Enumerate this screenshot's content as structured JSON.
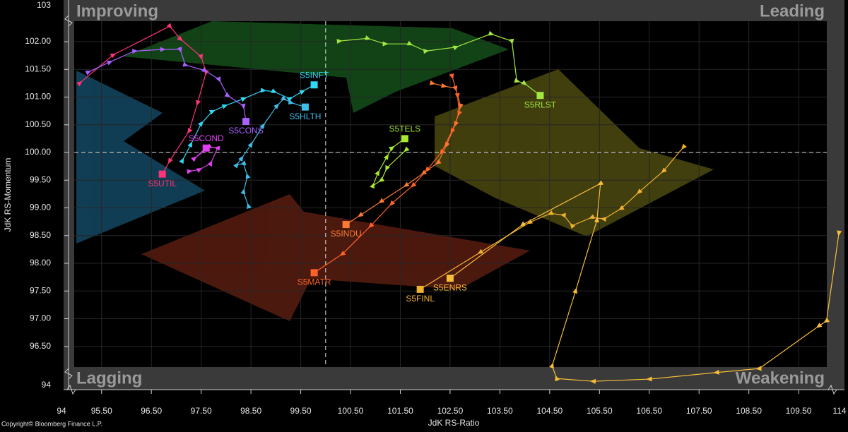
{
  "chart_data": {
    "type": "line",
    "x_label": "JdK RS-Ratio",
    "y_label": "JdK RS-Momentum",
    "quadrants": {
      "top_left": "Improving",
      "top_right": "Leading",
      "bottom_left": "Lagging",
      "bottom_right": "Weakening"
    },
    "copyright": "Copyright© Bloomberg Finance L.P.",
    "xlim": [
      94.95,
      110.35
    ],
    "ylim": [
      95.745,
      102.37
    ],
    "axis_breaks": {
      "x": [
        94,
        114
      ],
      "y": [
        94,
        103
      ]
    },
    "reference_lines": {
      "x": 100,
      "y": 100
    },
    "grid": true,
    "xticks": [
      {
        "value": 95.5,
        "label": "95.50"
      },
      {
        "value": 96.5,
        "label": "96.50"
      },
      {
        "value": 97.5,
        "label": "97.50"
      },
      {
        "value": 98.5,
        "label": "98.50"
      },
      {
        "value": 99.5,
        "label": "99.50"
      },
      {
        "value": 100.5,
        "label": "100.50"
      },
      {
        "value": 101.5,
        "label": "101.50"
      },
      {
        "value": 102.5,
        "label": "102.50"
      },
      {
        "value": 103.5,
        "label": "103.50"
      },
      {
        "value": 104.5,
        "label": "104.50"
      },
      {
        "value": 105.5,
        "label": "105.50"
      },
      {
        "value": 106.5,
        "label": "106.50"
      },
      {
        "value": 107.5,
        "label": "107.50"
      },
      {
        "value": 108.5,
        "label": "108.50"
      },
      {
        "value": 109.5,
        "label": "109.50"
      }
    ],
    "yticks": [
      {
        "value": 96.5,
        "label": "96.50"
      },
      {
        "value": 97,
        "label": "97.00"
      },
      {
        "value": 97.5,
        "label": "97.50"
      },
      {
        "value": 98,
        "label": "98.00"
      },
      {
        "value": 98.5,
        "label": "98.50"
      },
      {
        "value": 99,
        "label": "99.00"
      },
      {
        "value": 99.5,
        "label": "99.50"
      },
      {
        "value": 100,
        "label": "100.00"
      },
      {
        "value": 100.5,
        "label": "100.50"
      },
      {
        "value": 101,
        "label": "101.00"
      },
      {
        "value": 101.5,
        "label": "101.50"
      },
      {
        "value": 102,
        "label": "102.00"
      }
    ],
    "series": [
      {
        "name": "S5UTIL",
        "color": "#ff3377",
        "x": [
          95.06,
          95.73,
          96.87,
          97.08,
          97.5,
          97.6,
          97.43,
          97.26,
          96.87,
          96.72
        ],
        "values": [
          101.25,
          101.76,
          102.28,
          102.05,
          101.73,
          101.45,
          100.9,
          100.39,
          99.85,
          99.61
        ]
      },
      {
        "name": "S5CONS",
        "color": "#a860ff",
        "x": [
          95.23,
          95.66,
          96.16,
          96.72,
          97.08,
          97.18,
          97.57,
          97.86,
          98.03,
          98.35,
          98.4
        ],
        "values": [
          101.45,
          101.63,
          101.83,
          101.86,
          101.86,
          101.58,
          101.48,
          101.32,
          101.03,
          100.84,
          100.56
        ]
      },
      {
        "name": "S5INFT",
        "color": "#30d8f8",
        "x": [
          97.12,
          97.29,
          97.5,
          97.72,
          97.97,
          98.35,
          98.74,
          98.96,
          99.28,
          99.53,
          99.77
        ],
        "values": [
          99.85,
          100.14,
          100.52,
          100.74,
          100.84,
          100.97,
          101.12,
          101.1,
          100.97,
          101.1,
          101.22
        ]
      },
      {
        "name": "S5HLTH",
        "color": "#40bce8",
        "x": [
          98.45,
          98.35,
          98.43,
          98.35,
          98.21,
          98.31,
          98.5,
          98.74,
          99.02,
          99.16,
          99.3,
          99.59
        ],
        "values": [
          99.03,
          99.29,
          99.57,
          99.8,
          99.77,
          99.89,
          100.14,
          100.48,
          100.84,
          100.97,
          100.9,
          100.82
        ]
      },
      {
        "name": "S5COND",
        "color": "#e040f0",
        "x": [
          97.26,
          97.46,
          97.69,
          97.83,
          97.66,
          97.36,
          97.6
        ],
        "values": [
          99.66,
          99.69,
          99.8,
          100.08,
          100.1,
          99.89,
          100.08
        ]
      },
      {
        "name": "S5TELS",
        "color": "#a8e830",
        "x": [
          101.62,
          101.23,
          101.12,
          100.95,
          101.05,
          101.23,
          101.33,
          101.59
        ],
        "values": [
          100.05,
          99.72,
          99.5,
          99.4,
          99.63,
          99.92,
          100.08,
          100.25
        ]
      },
      {
        "name": "S5INDU",
        "color": "#ff7a30",
        "x": [
          102.14,
          102.37,
          102.61,
          102.71,
          102.61,
          102.43,
          102.26,
          101.97,
          101.62,
          101.12,
          100.7,
          100.41
        ],
        "values": [
          101.25,
          101.2,
          101.16,
          100.84,
          100.52,
          100.14,
          99.82,
          99.63,
          99.41,
          99.12,
          98.87,
          98.7
        ]
      },
      {
        "name": "S5MATR",
        "color": "#ff6228",
        "x": [
          102.54,
          102.65,
          102.68,
          102.54,
          102.33,
          102.04,
          101.76,
          101.33,
          100.91,
          100.34,
          99.77
        ],
        "values": [
          101.38,
          101.03,
          100.71,
          100.39,
          100.01,
          99.69,
          99.41,
          99.08,
          98.68,
          98.17,
          97.83
        ]
      },
      {
        "name": "S5RLST",
        "color": "#a0e840",
        "x": [
          100.27,
          100.84,
          101.19,
          101.69,
          102.01,
          102.61,
          103.32,
          103.74,
          103.84,
          103.99,
          104.31
        ],
        "values": [
          102.01,
          102.06,
          101.96,
          101.96,
          101.83,
          101.9,
          102.14,
          102.01,
          101.29,
          101.25,
          101.03
        ]
      },
      {
        "name": "S5FINL",
        "color": "#f0b030",
        "x": [
          107.19,
          106.79,
          106.3,
          105.94,
          105.59,
          105.35,
          104.95,
          104.78,
          104.52,
          104.1,
          103.11,
          101.9
        ],
        "values": [
          100.1,
          99.67,
          99.29,
          98.99,
          98.8,
          98.83,
          98.68,
          98.87,
          98.9,
          98.74,
          98.2,
          97.53
        ]
      },
      {
        "name": "S5ENRS",
        "color": "#f8be38",
        "x": [
          110.31,
          110.06,
          109.91,
          108.71,
          107.86,
          106.51,
          105.38,
          104.64,
          104.55,
          105.02,
          105.45,
          105.52,
          103.96,
          102.5
        ],
        "values": [
          98.55,
          96.96,
          96.87,
          96.1,
          96.03,
          95.91,
          95.87,
          95.92,
          96.15,
          97.5,
          98.78,
          99.44,
          98.7,
          97.73
        ]
      }
    ]
  }
}
